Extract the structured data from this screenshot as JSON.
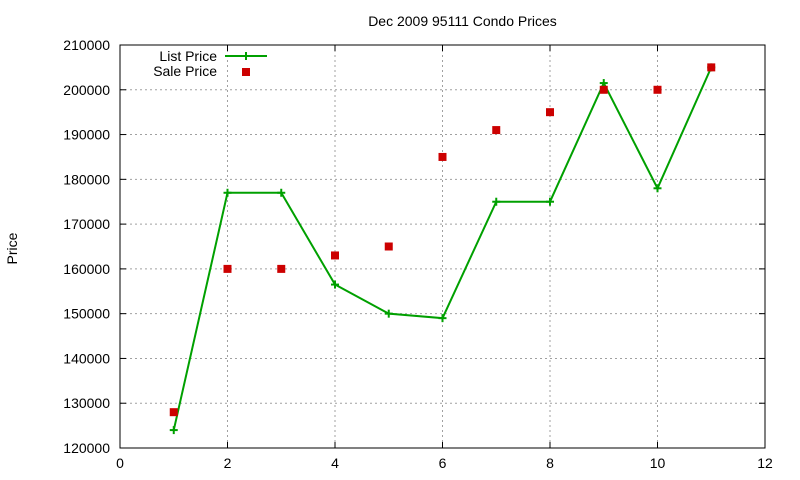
{
  "chart_data": {
    "type": "line",
    "title": "Dec 2009 95111 Condo Prices",
    "xlabel": "",
    "ylabel": "Price",
    "xlim": [
      0,
      12
    ],
    "ylim": [
      120000,
      210000
    ],
    "x_ticks": [
      0,
      2,
      4,
      6,
      8,
      10,
      12
    ],
    "y_ticks": [
      120000,
      130000,
      140000,
      150000,
      160000,
      170000,
      180000,
      190000,
      200000,
      210000
    ],
    "grid": true,
    "legend_position": "top-left",
    "series": [
      {
        "name": "List Price",
        "style": "line-with-plus-markers",
        "color": "#00a000",
        "points": [
          [
            1,
            124000
          ],
          [
            2,
            177000
          ],
          [
            3,
            177000
          ],
          [
            4,
            156500
          ],
          [
            5,
            150000
          ],
          [
            6,
            149000
          ],
          [
            7,
            175000
          ],
          [
            8,
            175000
          ],
          [
            9,
            201500
          ],
          [
            10,
            178000
          ],
          [
            11,
            205000
          ]
        ]
      },
      {
        "name": "Sale Price",
        "style": "square-markers",
        "color": "#cc0000",
        "points": [
          [
            1,
            128000
          ],
          [
            2,
            160000
          ],
          [
            3,
            160000
          ],
          [
            4,
            163000
          ],
          [
            5,
            165000
          ],
          [
            6,
            185000
          ],
          [
            7,
            191000
          ],
          [
            8,
            195000
          ],
          [
            9,
            200000
          ],
          [
            10,
            200000
          ],
          [
            11,
            205000
          ]
        ]
      }
    ]
  }
}
